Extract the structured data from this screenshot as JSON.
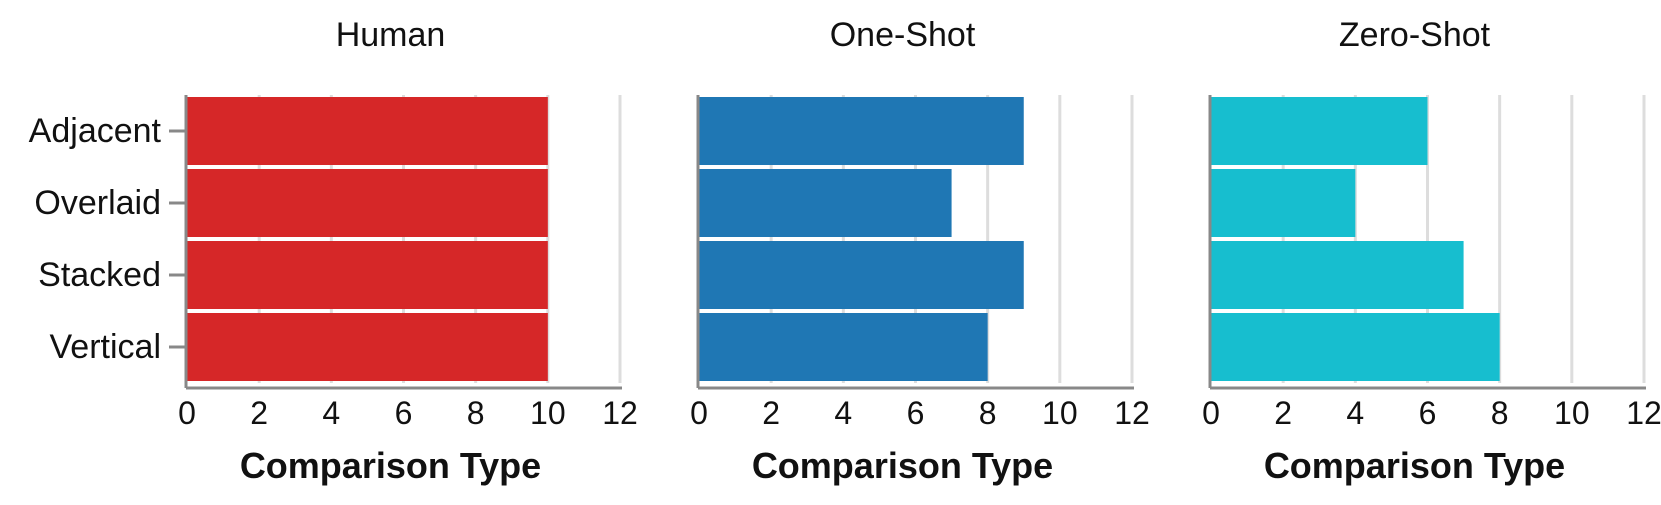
{
  "chart_data": [
    {
      "type": "bar",
      "orientation": "horizontal",
      "title": "Human",
      "xlabel": "Comparison Type",
      "ylabel": "",
      "categories": [
        "Adjacent",
        "Overlaid",
        "Stacked",
        "Vertical"
      ],
      "values": [
        10,
        10,
        10,
        10
      ],
      "xlim": [
        0,
        12
      ],
      "xticks": [
        "0",
        "2",
        "4",
        "6",
        "8",
        "10",
        "12"
      ],
      "color": "#d62728",
      "grid": true
    },
    {
      "type": "bar",
      "orientation": "horizontal",
      "title": "One-Shot",
      "xlabel": "Comparison Type",
      "ylabel": "",
      "categories": [
        "Adjacent",
        "Overlaid",
        "Stacked",
        "Vertical"
      ],
      "values": [
        9,
        7,
        9,
        8
      ],
      "xlim": [
        0,
        12
      ],
      "xticks": [
        "0",
        "2",
        "4",
        "6",
        "8",
        "10",
        "12"
      ],
      "color": "#1f77b4",
      "grid": true
    },
    {
      "type": "bar",
      "orientation": "horizontal",
      "title": "Zero-Shot",
      "xlabel": "Comparison Type",
      "ylabel": "",
      "categories": [
        "Adjacent",
        "Overlaid",
        "Stacked",
        "Vertical"
      ],
      "values": [
        6,
        4,
        7,
        8
      ],
      "xlim": [
        0,
        12
      ],
      "xticks": [
        "0",
        "2",
        "4",
        "6",
        "8",
        "10",
        "12"
      ],
      "color": "#17becf",
      "grid": true
    }
  ]
}
